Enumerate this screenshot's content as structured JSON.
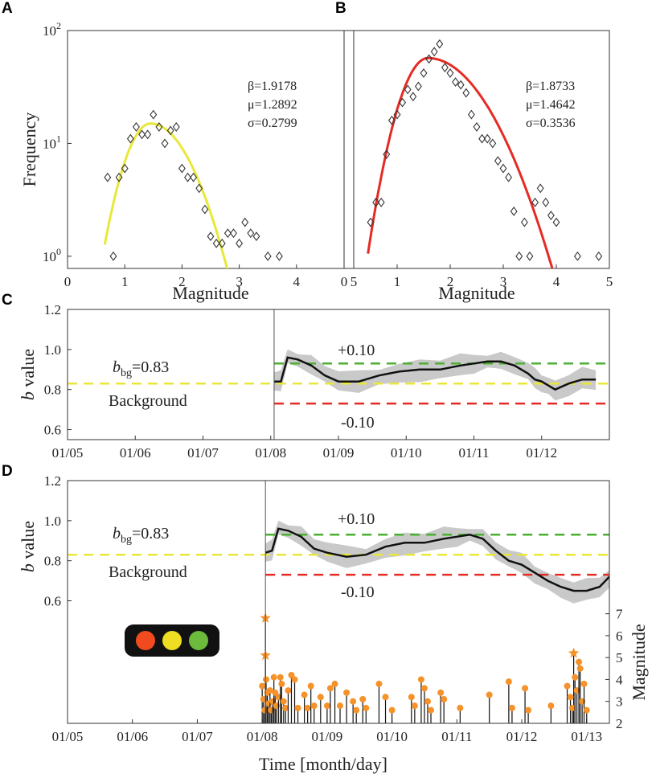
{
  "panels": [
    {
      "label": "A"
    },
    {
      "label": "B"
    },
    {
      "label": "C"
    },
    {
      "label": "D"
    }
  ],
  "chart_data": [
    {
      "id": "A",
      "type": "scatter",
      "yscale": "log",
      "xlabel": "Magnitude",
      "ylabel": "Frequency",
      "xlim": [
        0,
        5
      ],
      "ylim": [
        0.78,
        100
      ],
      "xticks": [
        {
          "v": 0,
          "t": "0"
        },
        {
          "v": 1,
          "t": "1"
        },
        {
          "v": 2,
          "t": "2"
        },
        {
          "v": 3,
          "t": "3"
        },
        {
          "v": 4,
          "t": "4"
        },
        {
          "v": 5,
          "t": "5"
        }
      ],
      "yticks": [
        {
          "v": 1,
          "base": "10",
          "exp": "0"
        },
        {
          "v": 10,
          "base": "10",
          "exp": "1"
        },
        {
          "v": 100,
          "base": "10",
          "exp": "2"
        }
      ],
      "params": {
        "beta": "β=1.9178",
        "mu": "μ=1.2892",
        "sigma": "σ=0.2799"
      },
      "fit_color": "#e8e83a",
      "fit": {
        "peak_x": 1.45,
        "peak_y": 15,
        "sigma_left": 0.36,
        "sigma_right": 0.55,
        "range": [
          0.65,
          3.2
        ]
      },
      "points": [
        [
          0.7,
          5
        ],
        [
          0.8,
          1
        ],
        [
          0.9,
          5
        ],
        [
          1.0,
          6
        ],
        [
          1.1,
          11
        ],
        [
          1.2,
          14
        ],
        [
          1.3,
          12
        ],
        [
          1.4,
          12
        ],
        [
          1.5,
          18
        ],
        [
          1.6,
          14
        ],
        [
          1.7,
          10
        ],
        [
          1.8,
          13
        ],
        [
          1.9,
          14
        ],
        [
          2.0,
          6
        ],
        [
          2.1,
          5
        ],
        [
          2.2,
          5
        ],
        [
          2.3,
          4
        ],
        [
          2.4,
          2.6
        ],
        [
          2.5,
          1.5
        ],
        [
          2.6,
          1.3
        ],
        [
          2.7,
          1.3
        ],
        [
          2.8,
          1.6
        ],
        [
          2.9,
          1.6
        ],
        [
          3.0,
          1.3
        ],
        [
          3.1,
          2
        ],
        [
          3.2,
          1.6
        ],
        [
          3.3,
          1.5
        ],
        [
          3.5,
          1
        ],
        [
          3.7,
          1
        ]
      ]
    },
    {
      "id": "B",
      "type": "scatter",
      "yscale": "log",
      "xlabel": "Magnitude",
      "ylabel": "",
      "xlim": [
        0,
        5
      ],
      "ylim": [
        0.78,
        100
      ],
      "xticks": [
        {
          "v": 0,
          "t": "0"
        },
        {
          "v": 1,
          "t": "1"
        },
        {
          "v": 2,
          "t": "2"
        },
        {
          "v": 3,
          "t": "3"
        },
        {
          "v": 4,
          "t": "4"
        },
        {
          "v": 5,
          "t": "5"
        }
      ],
      "params": {
        "beta": "β=1.8733",
        "mu": "μ=1.4642",
        "sigma": "σ=0.3536"
      },
      "fit_color": "#e62a24",
      "fit": {
        "peak_x": 1.58,
        "peak_y": 57,
        "sigma_left": 0.4,
        "sigma_right": 0.8,
        "range": [
          0.45,
          4.1
        ]
      },
      "points": [
        [
          0.5,
          2
        ],
        [
          0.6,
          3
        ],
        [
          0.7,
          3
        ],
        [
          0.8,
          8
        ],
        [
          0.9,
          16
        ],
        [
          1.0,
          18
        ],
        [
          1.1,
          23
        ],
        [
          1.2,
          30
        ],
        [
          1.3,
          26
        ],
        [
          1.4,
          32
        ],
        [
          1.5,
          42
        ],
        [
          1.6,
          56
        ],
        [
          1.7,
          65
        ],
        [
          1.8,
          76
        ],
        [
          1.9,
          47
        ],
        [
          2.0,
          42
        ],
        [
          2.1,
          35
        ],
        [
          2.2,
          33
        ],
        [
          2.3,
          28
        ],
        [
          2.4,
          18
        ],
        [
          2.5,
          14
        ],
        [
          2.6,
          11
        ],
        [
          2.7,
          11
        ],
        [
          2.8,
          10
        ],
        [
          2.9,
          7
        ],
        [
          3.0,
          6
        ],
        [
          3.1,
          5
        ],
        [
          3.2,
          2.5
        ],
        [
          3.3,
          1
        ],
        [
          3.4,
          2
        ],
        [
          3.5,
          1
        ],
        [
          3.6,
          3
        ],
        [
          3.7,
          4
        ],
        [
          3.8,
          3
        ],
        [
          3.9,
          2.3
        ],
        [
          4.0,
          2
        ],
        [
          4.4,
          1
        ],
        [
          4.8,
          1
        ]
      ]
    },
    {
      "id": "C",
      "type": "line",
      "ylabel_italic": "b",
      "ylabel_rest": " value",
      "xlim": [
        0,
        8
      ],
      "ylim": [
        0.55,
        1.2
      ],
      "xticks": [
        {
          "v": 0,
          "t": "01/05"
        },
        {
          "v": 1,
          "t": "01/06"
        },
        {
          "v": 2,
          "t": "01/07"
        },
        {
          "v": 3,
          "t": "01/08"
        },
        {
          "v": 4,
          "t": "01/09"
        },
        {
          "v": 5,
          "t": "01/10"
        },
        {
          "v": 6,
          "t": "01/11"
        },
        {
          "v": 7,
          "t": "01/12"
        }
      ],
      "yticks": [
        {
          "v": 0.6,
          "t": "0.6"
        },
        {
          "v": 0.8,
          "t": "0.8"
        },
        {
          "v": 1.0,
          "t": "1.0"
        },
        {
          "v": 1.2,
          "t": "1.2"
        }
      ],
      "background_b": 0.83,
      "upper_threshold": 0.93,
      "lower_threshold": 0.73,
      "start_x": 3.05,
      "bbg_main": "b",
      "bbg_sub": "bg",
      "bbg_value": "=0.83",
      "background_label": "Background",
      "plus_label": "+0.10",
      "minus_label": "-0.10",
      "threshold_colors": {
        "background": "#e8e83a",
        "upper": "#4caf32",
        "lower": "#e62a24"
      },
      "series": [
        {
          "name": "b value",
          "x": [
            3.05,
            3.15,
            3.25,
            3.4,
            3.6,
            3.8,
            4.0,
            4.3,
            4.6,
            4.9,
            5.2,
            5.5,
            5.8,
            6.0,
            6.2,
            6.4,
            6.6,
            6.8,
            6.9,
            7.0,
            7.1,
            7.2,
            7.4,
            7.6,
            7.8
          ],
          "y": [
            0.84,
            0.84,
            0.96,
            0.95,
            0.92,
            0.87,
            0.84,
            0.84,
            0.87,
            0.89,
            0.9,
            0.9,
            0.92,
            0.93,
            0.94,
            0.94,
            0.92,
            0.88,
            0.85,
            0.84,
            0.82,
            0.8,
            0.83,
            0.85,
            0.85
          ]
        }
      ]
    },
    {
      "id": "D",
      "type": "line",
      "xlabel": "Time [month/day]",
      "ylabel_italic": "b",
      "ylabel_rest": " value",
      "right_ylabel": "Magnitude",
      "xlim": [
        0,
        8.35
      ],
      "ylim": [
        0.55,
        1.2
      ],
      "xticks": [
        {
          "v": 0,
          "t": "01/05"
        },
        {
          "v": 1,
          "t": "01/06"
        },
        {
          "v": 2,
          "t": "01/07"
        },
        {
          "v": 3,
          "t": "01/08"
        },
        {
          "v": 4,
          "t": "01/09"
        },
        {
          "v": 5,
          "t": "01/10"
        },
        {
          "v": 6,
          "t": "01/11"
        },
        {
          "v": 7,
          "t": "01/12"
        },
        {
          "v": 8,
          "t": "01/13"
        }
      ],
      "yticks": [
        {
          "v": 0.6,
          "t": "0.6"
        },
        {
          "v": 0.8,
          "t": "0.8"
        },
        {
          "v": 1.0,
          "t": "1.0"
        },
        {
          "v": 1.2,
          "t": "1.2"
        }
      ],
      "mag_lim": [
        2,
        7.5
      ],
      "mag_ticks": [
        {
          "v": 2,
          "t": "2"
        },
        {
          "v": 3,
          "t": "3"
        },
        {
          "v": 4,
          "t": "4"
        },
        {
          "v": 5,
          "t": "5"
        },
        {
          "v": 6,
          "t": "6"
        },
        {
          "v": 7,
          "t": "7"
        }
      ],
      "background_b": 0.83,
      "upper_threshold": 0.93,
      "lower_threshold": 0.73,
      "start_x": 3.05,
      "bbg_main": "b",
      "bbg_sub": "bg",
      "bbg_value": "=0.83",
      "background_label": "Background",
      "plus_label": "+0.10",
      "minus_label": "-0.10",
      "traffic_light": [
        "#f04a1e",
        "#eedd22",
        "#6cbb3c"
      ],
      "event_color": "#f5922a",
      "series": [
        {
          "name": "b value",
          "x": [
            3.05,
            3.15,
            3.25,
            3.4,
            3.6,
            3.8,
            4.0,
            4.3,
            4.6,
            4.9,
            5.2,
            5.5,
            5.8,
            6.0,
            6.2,
            6.4,
            6.6,
            6.8,
            7.0,
            7.2,
            7.4,
            7.6,
            7.8,
            8.0,
            8.2,
            8.35
          ],
          "y": [
            0.84,
            0.85,
            0.96,
            0.95,
            0.92,
            0.86,
            0.84,
            0.82,
            0.83,
            0.87,
            0.89,
            0.89,
            0.91,
            0.92,
            0.93,
            0.91,
            0.85,
            0.8,
            0.78,
            0.74,
            0.7,
            0.67,
            0.65,
            0.65,
            0.67,
            0.72
          ]
        }
      ],
      "events": [
        {
          "x": 3.05,
          "m": 6.8,
          "star": true
        },
        {
          "x": 3.05,
          "m": 5.1,
          "star": true
        },
        {
          "x": 7.8,
          "m": 5.2,
          "star": true
        },
        {
          "x": 3.0,
          "m": 3.7
        },
        {
          "x": 3.02,
          "m": 3.1
        },
        {
          "x": 3.04,
          "m": 2.6
        },
        {
          "x": 3.06,
          "m": 4.0
        },
        {
          "x": 3.08,
          "m": 3.4
        },
        {
          "x": 3.1,
          "m": 2.9
        },
        {
          "x": 3.12,
          "m": 3.5
        },
        {
          "x": 3.14,
          "m": 2.6
        },
        {
          "x": 3.16,
          "m": 3.0
        },
        {
          "x": 3.18,
          "m": 4.1
        },
        {
          "x": 3.2,
          "m": 3.4
        },
        {
          "x": 3.22,
          "m": 2.8
        },
        {
          "x": 3.25,
          "m": 3.2
        },
        {
          "x": 3.28,
          "m": 4.1
        },
        {
          "x": 3.3,
          "m": 3.8
        },
        {
          "x": 3.33,
          "m": 3.0
        },
        {
          "x": 3.36,
          "m": 2.7
        },
        {
          "x": 3.4,
          "m": 3.5
        },
        {
          "x": 3.45,
          "m": 4.2
        },
        {
          "x": 3.5,
          "m": 4.0
        },
        {
          "x": 3.55,
          "m": 2.7
        },
        {
          "x": 3.65,
          "m": 3.3
        },
        {
          "x": 3.7,
          "m": 2.7
        },
        {
          "x": 3.75,
          "m": 3.7
        },
        {
          "x": 3.8,
          "m": 2.8
        },
        {
          "x": 3.9,
          "m": 3.2
        },
        {
          "x": 4.0,
          "m": 2.8
        },
        {
          "x": 4.05,
          "m": 3.6
        },
        {
          "x": 4.12,
          "m": 3.8
        },
        {
          "x": 4.2,
          "m": 2.8
        },
        {
          "x": 4.3,
          "m": 3.4
        },
        {
          "x": 4.4,
          "m": 3.0
        },
        {
          "x": 4.45,
          "m": 2.6
        },
        {
          "x": 4.55,
          "m": 3.1
        },
        {
          "x": 4.6,
          "m": 2.7
        },
        {
          "x": 4.8,
          "m": 3.8
        },
        {
          "x": 4.9,
          "m": 3.2
        },
        {
          "x": 5.0,
          "m": 2.6
        },
        {
          "x": 5.3,
          "m": 3.2
        },
        {
          "x": 5.35,
          "m": 2.8
        },
        {
          "x": 5.45,
          "m": 4.0
        },
        {
          "x": 5.5,
          "m": 3.6
        },
        {
          "x": 5.55,
          "m": 3.0
        },
        {
          "x": 5.6,
          "m": 2.6
        },
        {
          "x": 5.75,
          "m": 3.4
        },
        {
          "x": 5.8,
          "m": 3.1
        },
        {
          "x": 6.05,
          "m": 2.7
        },
        {
          "x": 6.5,
          "m": 3.3
        },
        {
          "x": 6.8,
          "m": 3.9
        },
        {
          "x": 6.85,
          "m": 2.7
        },
        {
          "x": 7.05,
          "m": 3.6
        },
        {
          "x": 7.1,
          "m": 2.6
        },
        {
          "x": 7.45,
          "m": 2.8
        },
        {
          "x": 7.7,
          "m": 3.7
        },
        {
          "x": 7.75,
          "m": 3.2
        },
        {
          "x": 7.78,
          "m": 2.7
        },
        {
          "x": 7.82,
          "m": 4.1
        },
        {
          "x": 7.85,
          "m": 3.5
        },
        {
          "x": 7.88,
          "m": 4.8
        },
        {
          "x": 7.9,
          "m": 4.5
        },
        {
          "x": 7.93,
          "m": 3.0
        },
        {
          "x": 7.96,
          "m": 3.8
        },
        {
          "x": 8.0,
          "m": 2.6
        }
      ]
    }
  ]
}
